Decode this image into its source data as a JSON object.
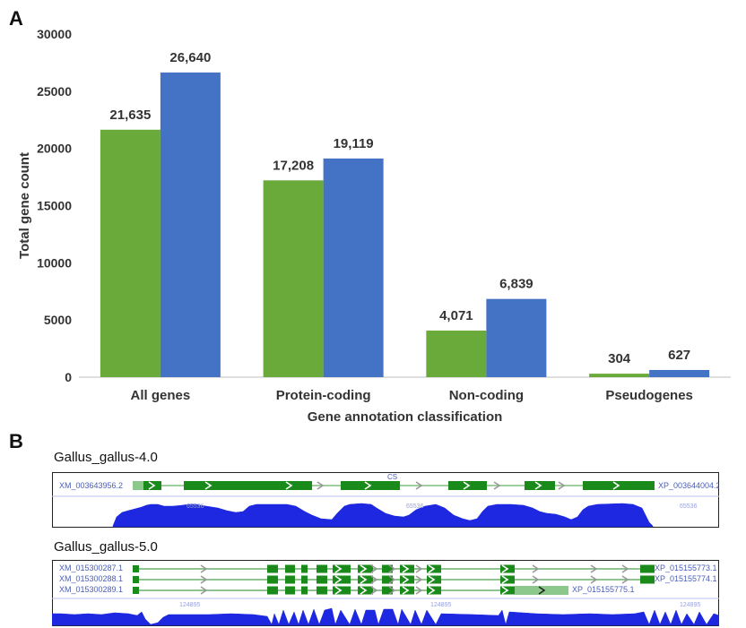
{
  "panel_a": {
    "letter": "A"
  },
  "panel_b": {
    "letter": "B"
  },
  "chart_data": {
    "type": "bar",
    "categories": [
      "All genes",
      "Protein-coding",
      "Non-coding",
      "Pseudogenes"
    ],
    "series": [
      {
        "values": [
          21635,
          17208,
          4071,
          304
        ],
        "labels": [
          "21,635",
          "17,208",
          "4,071",
          "304"
        ],
        "color": "#6aaa3a"
      },
      {
        "values": [
          26640,
          19119,
          6839,
          627
        ],
        "labels": [
          "26,640",
          "19,119",
          "6,839",
          "627"
        ],
        "color": "#4472c4"
      }
    ],
    "xlabel": "Gene annotation classification",
    "ylabel": "Total gene count",
    "ylim": [
      0,
      30000
    ],
    "yticks": [
      0,
      5000,
      10000,
      15000,
      20000,
      25000,
      30000
    ],
    "ytick_labels": [
      "0",
      "5000",
      "10000",
      "15000",
      "20000",
      "25000",
      "30000"
    ],
    "grid": false,
    "legend": "none"
  },
  "tracks": {
    "gal4": {
      "title": "Gallus_gallus-4.0",
      "left_label": "XM_003643956.2",
      "right_label": "XP_003644004.2",
      "top_mark": "CS",
      "axis_labels": [
        "65536",
        "65536",
        "65536"
      ],
      "colors": {
        "gene": "#1a8a1a",
        "utr": "#8cc88c",
        "coverage": "#1d28e0",
        "border": "#222222"
      }
    },
    "gal5": {
      "title": "Gallus_gallus-5.0",
      "rows": [
        {
          "left_label": "XM_015300287.1",
          "right_label": "XP_015155773.1"
        },
        {
          "left_label": "XM_015300288.1",
          "right_label": "XP_015155774.1"
        },
        {
          "left_label": "XM_015300289.1",
          "right_label": "XP_015155775.1"
        }
      ],
      "axis_labels": [
        "124895",
        "124895",
        "124895"
      ],
      "colors": {
        "gene": "#1a8a1a",
        "utr": "#8cc88c",
        "coverage": "#1d28e0",
        "border": "#222222"
      }
    }
  }
}
